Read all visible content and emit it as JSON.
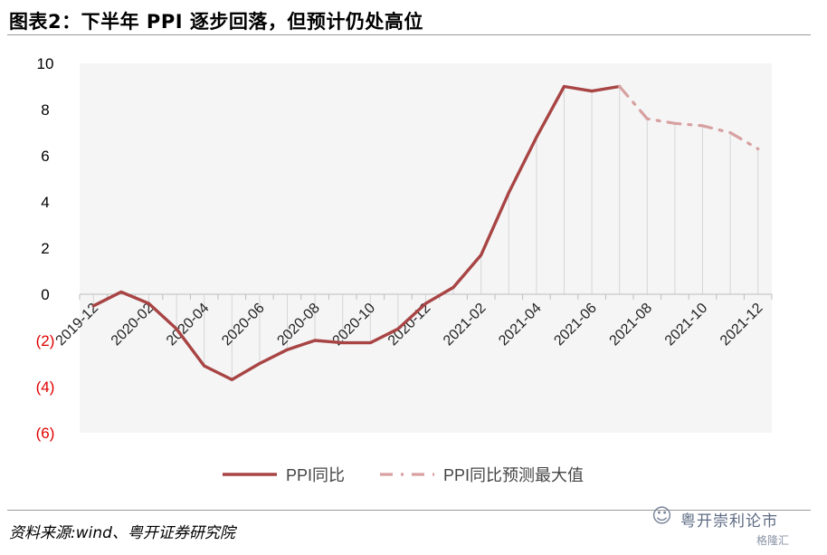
{
  "title": "图表2：下半年 PPI 逐步回落，但预计仍处高位",
  "source": "资料来源:wind、粤开证券研究院",
  "watermark": {
    "name": "粤开崇利论市",
    "badge": "格隆汇"
  },
  "colors": {
    "actual": "#a84444",
    "forecast": "#d8a0a0",
    "negative_tick": "#e00000",
    "plot_bg": "#f5f5f5"
  },
  "chart_data": {
    "type": "line",
    "ylim": [
      -6,
      10
    ],
    "yticks": [
      10,
      8,
      6,
      4,
      2,
      0,
      -2,
      -4,
      -6
    ],
    "ytick_labels": [
      "10",
      "8",
      "6",
      "4",
      "2",
      "0",
      "(2)",
      "(4)",
      "(6)"
    ],
    "x": [
      "2019-12",
      "2020-01",
      "2020-02",
      "2020-03",
      "2020-04",
      "2020-05",
      "2020-06",
      "2020-07",
      "2020-08",
      "2020-09",
      "2020-10",
      "2020-11",
      "2020-12",
      "2021-01",
      "2021-02",
      "2021-03",
      "2021-04",
      "2021-05",
      "2021-06",
      "2021-07",
      "2021-08",
      "2021-09",
      "2021-10",
      "2021-11",
      "2021-12"
    ],
    "xtick_labels": [
      "2019-12",
      "",
      "2020-02",
      "",
      "2020-04",
      "",
      "2020-06",
      "",
      "2020-08",
      "",
      "2020-10",
      "",
      "2020-12",
      "",
      "2021-02",
      "",
      "2021-04",
      "",
      "2021-06",
      "",
      "2021-08",
      "",
      "2021-10",
      "",
      "2021-12"
    ],
    "series": [
      {
        "name": "PPI同比",
        "style": "solid",
        "values": [
          -0.5,
          0.1,
          -0.4,
          -1.5,
          -3.1,
          -3.7,
          -3.0,
          -2.4,
          -2.0,
          -2.1,
          -2.1,
          -1.5,
          -0.4,
          0.3,
          1.7,
          4.4,
          6.8,
          9.0,
          8.8,
          9.0,
          null,
          null,
          null,
          null,
          null
        ]
      },
      {
        "name": "PPI同比预测最大值",
        "style": "dashdot",
        "values": [
          null,
          null,
          null,
          null,
          null,
          null,
          null,
          null,
          null,
          null,
          null,
          null,
          null,
          null,
          null,
          null,
          null,
          null,
          null,
          9.0,
          7.6,
          7.4,
          7.3,
          7.0,
          6.3
        ]
      }
    ],
    "drop_lines": true,
    "legend_position": "bottom"
  }
}
